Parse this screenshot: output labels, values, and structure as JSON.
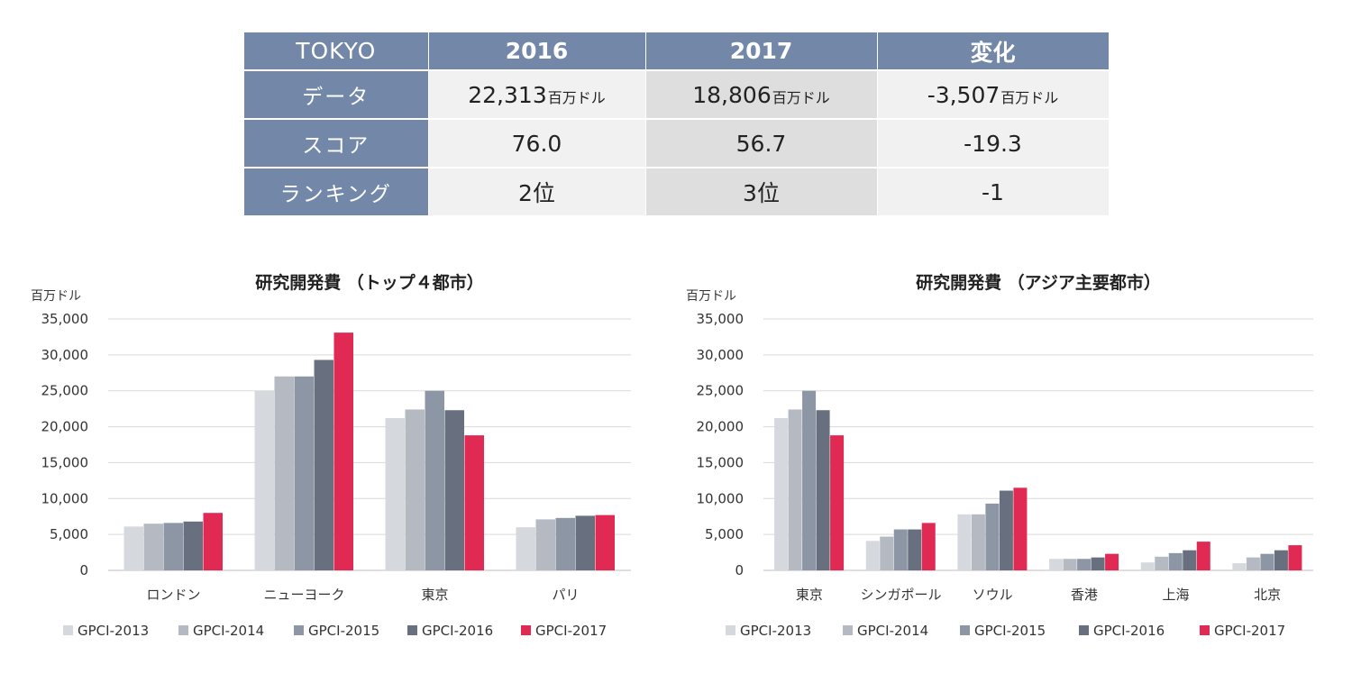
{
  "table": {
    "corner": "TOKYO",
    "columns": [
      "2016",
      "2017",
      "変化"
    ],
    "rows": [
      {
        "label": "データ",
        "cells": [
          {
            "value": "22,313",
            "unit": "百万ドル"
          },
          {
            "value": "18,806",
            "unit": "百万ドル"
          },
          {
            "value": "-3,507",
            "unit": "百万ドル"
          }
        ]
      },
      {
        "label": "スコア",
        "cells": [
          {
            "value": "76.0",
            "unit": ""
          },
          {
            "value": "56.7",
            "unit": ""
          },
          {
            "value": "-19.3",
            "unit": ""
          }
        ]
      },
      {
        "label": "ランキング",
        "cells": [
          {
            "value": "2位",
            "unit": ""
          },
          {
            "value": "3位",
            "unit": ""
          },
          {
            "value": "-1",
            "unit": ""
          }
        ]
      }
    ]
  },
  "colors": {
    "header_bg": "#7388a8",
    "series": [
      "#d5d8dd",
      "#b4b9c2",
      "#8d96a4",
      "#68707f",
      "#e02a53"
    ]
  },
  "chart_data": [
    {
      "type": "bar",
      "title": "研究開発費 （トップ４都市）",
      "ylabel": "百万ドル",
      "ylim": [
        0,
        35000
      ],
      "yticks": [
        "0",
        "5,000",
        "10,000",
        "15,000",
        "20,000",
        "25,000",
        "30,000",
        "35,000"
      ],
      "grid": true,
      "legend_position": "bottom",
      "categories": [
        "ロンドン",
        "ニューヨーク",
        "東京",
        "パリ"
      ],
      "series": [
        {
          "name": "GPCI-2013",
          "values": [
            6100,
            25000,
            21200,
            6000
          ]
        },
        {
          "name": "GPCI-2014",
          "values": [
            6500,
            27000,
            22400,
            7100
          ]
        },
        {
          "name": "GPCI-2015",
          "values": [
            6600,
            27000,
            25000,
            7300
          ]
        },
        {
          "name": "GPCI-2016",
          "values": [
            6800,
            29300,
            22300,
            7600
          ]
        },
        {
          "name": "GPCI-2017",
          "values": [
            8000,
            33100,
            18800,
            7700
          ]
        }
      ]
    },
    {
      "type": "bar",
      "title": "研究開発費 （アジア主要都市）",
      "ylabel": "百万ドル",
      "ylim": [
        0,
        35000
      ],
      "yticks": [
        "0",
        "5,000",
        "10,000",
        "15,000",
        "20,000",
        "25,000",
        "30,000",
        "35,000"
      ],
      "grid": true,
      "legend_position": "bottom",
      "categories": [
        "東京",
        "シンガポール",
        "ソウル",
        "香港",
        "上海",
        "北京"
      ],
      "series": [
        {
          "name": "GPCI-2013",
          "values": [
            21200,
            4100,
            7800,
            1600,
            1100,
            1000
          ]
        },
        {
          "name": "GPCI-2014",
          "values": [
            22400,
            4700,
            7800,
            1600,
            1900,
            1800
          ]
        },
        {
          "name": "GPCI-2015",
          "values": [
            25000,
            5700,
            9300,
            1600,
            2400,
            2300
          ]
        },
        {
          "name": "GPCI-2016",
          "values": [
            22300,
            5700,
            11100,
            1800,
            2800,
            2800
          ]
        },
        {
          "name": "GPCI-2017",
          "values": [
            18800,
            6600,
            11500,
            2300,
            4000,
            3500
          ]
        }
      ]
    }
  ]
}
